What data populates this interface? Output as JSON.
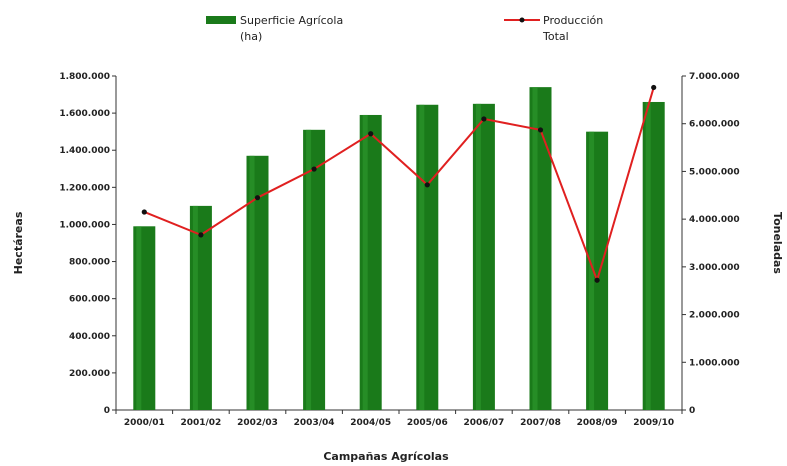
{
  "chart_data": {
    "type": "bar",
    "categories": [
      "2000/01",
      "2001/02",
      "2002/03",
      "2003/04",
      "2004/05",
      "2005/06",
      "2006/07",
      "2007/08",
      "2008/09",
      "2009/10"
    ],
    "series": [
      {
        "name": "Superficie Agrícola (ha)",
        "type": "bar",
        "axis": "left",
        "color": "#1a7a1a",
        "values": [
          990000,
          1100000,
          1370000,
          1510000,
          1590000,
          1645000,
          1650000,
          1740000,
          1500000,
          1660000
        ]
      },
      {
        "name": "Producción Total",
        "type": "line",
        "axis": "right",
        "color": "#e02020",
        "marker_color": "#111111",
        "values": [
          4150000,
          3670000,
          4450000,
          5050000,
          5790000,
          4720000,
          6100000,
          5870000,
          2720000,
          6760000
        ]
      }
    ],
    "legend": {
      "position": "top",
      "items": [
        {
          "label_line1": "Superficie Agrícola",
          "label_line2": "(ha)"
        },
        {
          "label_line1": "Producción",
          "label_line2": "Total"
        }
      ]
    },
    "xlabel": "Campañas Agrícolas",
    "ylabel": "Hectáreas",
    "y2label": "Toneladas",
    "ylim": [
      0,
      1800000
    ],
    "y2lim": [
      0,
      7000000
    ],
    "yticks": [
      "0",
      "200.000",
      "400.000",
      "600.000",
      "800.000",
      "1.000.000",
      "1.200.000",
      "1.400.000",
      "1.600.000",
      "1.800.000"
    ],
    "y2ticks": [
      "0",
      "1.000.000",
      "2.000.000",
      "3.000.000",
      "4.000.000",
      "5.000.000",
      "6.000.000",
      "7.000.000"
    ],
    "grid": false
  }
}
